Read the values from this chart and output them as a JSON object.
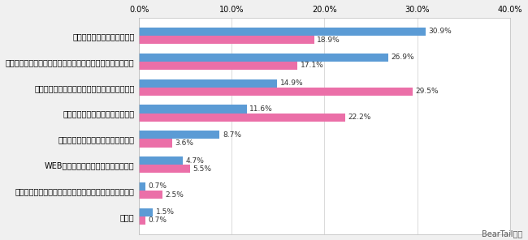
{
  "categories": [
    "家計簿アプリで管理している",
    "エクセルなどで作成したオリジナルの家計簿で管理している",
    "ノート・手帳・メモ帳で家計簿を管理している",
    "市販の紙の家計簿で管理している",
    "市販の家計簿ソフトで管理している",
    "WEB上の家計簿ソフトで管理している",
    "雑誌の付録などに付いている紙の家計簿で管理している",
    "その他"
  ],
  "values_blue": [
    30.9,
    26.9,
    14.9,
    11.6,
    8.7,
    4.7,
    0.7,
    1.5
  ],
  "values_pink": [
    18.9,
    17.1,
    29.5,
    22.2,
    3.6,
    5.5,
    2.5,
    0.7
  ],
  "color_blue": "#5b9bd5",
  "color_pink": "#eb6fa8",
  "xlim": [
    0,
    40
  ],
  "xticks": [
    0,
    10,
    20,
    30,
    40
  ],
  "xtick_labels": [
    "0.0%",
    "10.0%",
    "20.0%",
    "30.0%",
    "40.0%"
  ],
  "bar_height": 0.32,
  "credit": "BearTail調べ",
  "bg_color": "#f0f0f0",
  "plot_bg_color": "#ffffff"
}
